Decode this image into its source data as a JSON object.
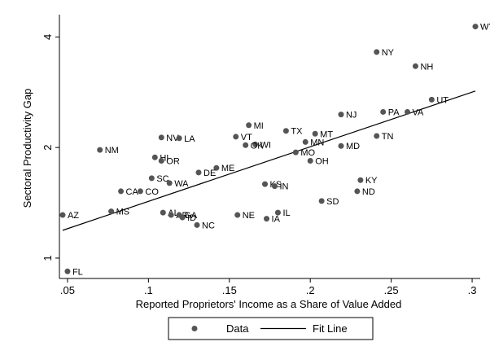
{
  "chart_data": {
    "type": "scatter",
    "xlabel": "Reported Proprietors' Income as a Share of Value Added",
    "ylabel": "Sectoral Productivity Gap",
    "xlim": [
      0.045,
      0.305
    ],
    "ylim": [
      0.88,
      4.6
    ],
    "y_scale": "log",
    "x_ticks": [
      {
        "value": 0.05,
        "label": ".05"
      },
      {
        "value": 0.1,
        "label": ".1"
      },
      {
        "value": 0.15,
        "label": ".15"
      },
      {
        "value": 0.2,
        "label": ".2"
      },
      {
        "value": 0.25,
        "label": ".25"
      },
      {
        "value": 0.3,
        "label": ".3"
      }
    ],
    "y_ticks": [
      {
        "value": 1,
        "label": "1"
      },
      {
        "value": 2,
        "label": "2"
      },
      {
        "value": 4,
        "label": "4"
      }
    ],
    "grid": false,
    "legend_position": "bottom",
    "legend": {
      "data_label": "Data",
      "fit_label": "Fit Line"
    },
    "fit_line": {
      "x": [
        0.047,
        0.302
      ],
      "y": [
        1.19,
        2.85
      ]
    },
    "series": [
      {
        "name": "Data",
        "points": [
          {
            "label": "WY",
            "x": 0.302,
            "y": 4.27
          },
          {
            "label": "NY",
            "x": 0.241,
            "y": 3.64
          },
          {
            "label": "NH",
            "x": 0.265,
            "y": 3.33
          },
          {
            "label": "UT",
            "x": 0.275,
            "y": 2.7
          },
          {
            "label": "PA",
            "x": 0.245,
            "y": 2.5
          },
          {
            "label": "VA",
            "x": 0.26,
            "y": 2.5
          },
          {
            "label": "NJ",
            "x": 0.219,
            "y": 2.46
          },
          {
            "label": "MI",
            "x": 0.162,
            "y": 2.3
          },
          {
            "label": "TX",
            "x": 0.185,
            "y": 2.22
          },
          {
            "label": "MT",
            "x": 0.203,
            "y": 2.18
          },
          {
            "label": "TN",
            "x": 0.241,
            "y": 2.15
          },
          {
            "label": "NV",
            "x": 0.108,
            "y": 2.13
          },
          {
            "label": "LA",
            "x": 0.119,
            "y": 2.12
          },
          {
            "label": "VT",
            "x": 0.154,
            "y": 2.14
          },
          {
            "label": "MN",
            "x": 0.197,
            "y": 2.07
          },
          {
            "label": "WI",
            "x": 0.166,
            "y": 2.04
          },
          {
            "label": "OK",
            "x": 0.16,
            "y": 2.03
          },
          {
            "label": "MD",
            "x": 0.219,
            "y": 2.02
          },
          {
            "label": "NM",
            "x": 0.07,
            "y": 1.97
          },
          {
            "label": "MO",
            "x": 0.191,
            "y": 1.94
          },
          {
            "label": "HI",
            "x": 0.104,
            "y": 1.88
          },
          {
            "label": "OR",
            "x": 0.108,
            "y": 1.84
          },
          {
            "label": "OH",
            "x": 0.2,
            "y": 1.84
          },
          {
            "label": "ME",
            "x": 0.142,
            "y": 1.76
          },
          {
            "label": "DE",
            "x": 0.131,
            "y": 1.71
          },
          {
            "label": "SC",
            "x": 0.102,
            "y": 1.65
          },
          {
            "label": "KY",
            "x": 0.231,
            "y": 1.63
          },
          {
            "label": "WA",
            "x": 0.113,
            "y": 1.6
          },
          {
            "label": "KS",
            "x": 0.172,
            "y": 1.59
          },
          {
            "label": "IN",
            "x": 0.178,
            "y": 1.57
          },
          {
            "label": "CA",
            "x": 0.083,
            "y": 1.52
          },
          {
            "label": "CO",
            "x": 0.095,
            "y": 1.52
          },
          {
            "label": "ND",
            "x": 0.229,
            "y": 1.52
          },
          {
            "label": "SD",
            "x": 0.207,
            "y": 1.43
          },
          {
            "label": "MS",
            "x": 0.077,
            "y": 1.34
          },
          {
            "label": "AL",
            "x": 0.109,
            "y": 1.33
          },
          {
            "label": "AR",
            "x": 0.114,
            "y": 1.31
          },
          {
            "label": "GA",
            "x": 0.119,
            "y": 1.31
          },
          {
            "label": "IL",
            "x": 0.18,
            "y": 1.33
          },
          {
            "label": "AZ",
            "x": 0.047,
            "y": 1.31
          },
          {
            "label": "NE",
            "x": 0.155,
            "y": 1.31
          },
          {
            "label": "ID",
            "x": 0.121,
            "y": 1.29
          },
          {
            "label": "IA",
            "x": 0.173,
            "y": 1.28
          },
          {
            "label": "NC",
            "x": 0.13,
            "y": 1.23
          },
          {
            "label": "FL",
            "x": 0.05,
            "y": 0.92
          }
        ]
      }
    ]
  }
}
